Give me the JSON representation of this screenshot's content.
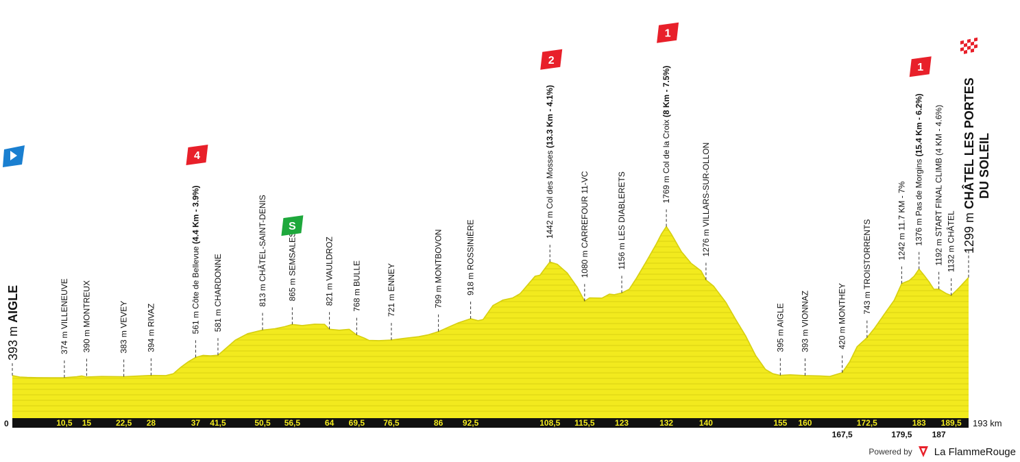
{
  "chart_data": {
    "type": "area",
    "title": "",
    "xlabel": "",
    "ylabel": "",
    "x_unit": "km",
    "xlim": [
      0,
      193
    ],
    "ylim": [
      0,
      2000
    ],
    "fill_color": "#f2ea1e",
    "axis_bar_color": "#111111",
    "tick_label_color": "#f2ea1e",
    "start_km_label": "0",
    "end_km_label": "193 km",
    "profile": [
      [
        0,
        393
      ],
      [
        1.5,
        380
      ],
      [
        3,
        376
      ],
      [
        5,
        374
      ],
      [
        8,
        373
      ],
      [
        10.5,
        374
      ],
      [
        13,
        382
      ],
      [
        14,
        390
      ],
      [
        15,
        380
      ],
      [
        18,
        385
      ],
      [
        22.5,
        383
      ],
      [
        25,
        388
      ],
      [
        28,
        394
      ],
      [
        31,
        393
      ],
      [
        32.5,
        410
      ],
      [
        34,
        470
      ],
      [
        35.5,
        520
      ],
      [
        37,
        561
      ],
      [
        38.5,
        580
      ],
      [
        40,
        575
      ],
      [
        41.5,
        581
      ],
      [
        43,
        640
      ],
      [
        45,
        720
      ],
      [
        47.5,
        780
      ],
      [
        50.5,
        813
      ],
      [
        53,
        826
      ],
      [
        55,
        845
      ],
      [
        56.5,
        865
      ],
      [
        58.5,
        855
      ],
      [
        61,
        868
      ],
      [
        63,
        866
      ],
      [
        64,
        821
      ],
      [
        66,
        812
      ],
      [
        68,
        820
      ],
      [
        69.5,
        768
      ],
      [
        71,
        740
      ],
      [
        72,
        718
      ],
      [
        74,
        716
      ],
      [
        76.5,
        721
      ],
      [
        79,
        736
      ],
      [
        82,
        752
      ],
      [
        84,
        770
      ],
      [
        86,
        799
      ],
      [
        88,
        840
      ],
      [
        90,
        880
      ],
      [
        92.5,
        918
      ],
      [
        94,
        900
      ],
      [
        95,
        910
      ],
      [
        97,
        1040
      ],
      [
        99,
        1090
      ],
      [
        101,
        1110
      ],
      [
        102.5,
        1150
      ],
      [
        104,
        1230
      ],
      [
        105.5,
        1310
      ],
      [
        106.5,
        1320
      ],
      [
        107.5,
        1382
      ],
      [
        108.5,
        1442
      ],
      [
        110,
        1420
      ],
      [
        112,
        1340
      ],
      [
        114,
        1210
      ],
      [
        115.5,
        1080
      ],
      [
        116.5,
        1110
      ],
      [
        119,
        1108
      ],
      [
        120.5,
        1145
      ],
      [
        121.5,
        1140
      ],
      [
        123,
        1156
      ],
      [
        124.5,
        1190
      ],
      [
        126,
        1295
      ],
      [
        128,
        1450
      ],
      [
        130,
        1610
      ],
      [
        131,
        1700
      ],
      [
        132,
        1769
      ],
      [
        133,
        1700
      ],
      [
        135,
        1540
      ],
      [
        137,
        1430
      ],
      [
        139,
        1360
      ],
      [
        140,
        1276
      ],
      [
        141.5,
        1220
      ],
      [
        144,
        1070
      ],
      [
        146,
        910
      ],
      [
        148,
        760
      ],
      [
        150,
        580
      ],
      [
        152,
        450
      ],
      [
        153.5,
        410
      ],
      [
        155,
        395
      ],
      [
        157,
        400
      ],
      [
        160,
        393
      ],
      [
        163,
        390
      ],
      [
        165,
        385
      ],
      [
        167.5,
        420
      ],
      [
        169,
        520
      ],
      [
        170.5,
        660
      ],
      [
        172.5,
        743
      ],
      [
        174,
        830
      ],
      [
        176,
        960
      ],
      [
        178,
        1090
      ],
      [
        179.5,
        1242
      ],
      [
        181,
        1270
      ],
      [
        182,
        1310
      ],
      [
        183,
        1376
      ],
      [
        184,
        1320
      ],
      [
        185,
        1260
      ],
      [
        186,
        1190
      ],
      [
        187,
        1192
      ],
      [
        188.5,
        1150
      ],
      [
        189.5,
        1132
      ],
      [
        191,
        1200
      ],
      [
        193,
        1299
      ]
    ],
    "km_ticks_top": [
      "10,5",
      "15",
      "22,5",
      "28",
      "37",
      "41,5",
      "50,5",
      "56,5",
      "64",
      "69,5",
      "76,5",
      "86",
      "92,5",
      "108,5",
      "115,5",
      "123",
      "132",
      "140",
      "155",
      "160",
      "172,5",
      "183",
      "189,5"
    ],
    "km_ticks_top_values": [
      10.5,
      15,
      22.5,
      28,
      37,
      41.5,
      50.5,
      56.5,
      64,
      69.5,
      76.5,
      86,
      92.5,
      108.5,
      115.5,
      123,
      132,
      140,
      155,
      160,
      172.5,
      183,
      189.5
    ],
    "km_ticks_bottom": [
      "167,5",
      "179,5",
      "187"
    ],
    "km_ticks_bottom_values": [
      167.5,
      179.5,
      187
    ],
    "waypoints": [
      {
        "km": 10.5,
        "alt": 374,
        "label": "374 m VILLENEUVE"
      },
      {
        "km": 15,
        "alt": 390,
        "label": "390 m MONTREUX"
      },
      {
        "km": 22.5,
        "alt": 383,
        "label": "383 m VEVEY"
      },
      {
        "km": 28,
        "alt": 394,
        "label": "394 m RIVAZ"
      },
      {
        "km": 37,
        "alt": 561,
        "label": "561 m Côte de Bellevue",
        "bold": "(4.4 Km - 3.9%)",
        "category": "4"
      },
      {
        "km": 41.5,
        "alt": 581,
        "label": "581 m CHARDONNE"
      },
      {
        "km": 50.5,
        "alt": 813,
        "label": "813 m CHÂTEL-SAINT-DENIS"
      },
      {
        "km": 56.5,
        "alt": 865,
        "label": "865 m SEMSALES",
        "sprint": true
      },
      {
        "km": 64,
        "alt": 821,
        "label": "821 m VAULDROZ"
      },
      {
        "km": 69.5,
        "alt": 768,
        "label": "768 m BULLE"
      },
      {
        "km": 76.5,
        "alt": 721,
        "label": "721 m ENNEY"
      },
      {
        "km": 86,
        "alt": 799,
        "label": "799 m MONTBOVON"
      },
      {
        "km": 92.5,
        "alt": 918,
        "label": "918 m ROSSINIÈRE"
      },
      {
        "km": 108.5,
        "alt": 1442,
        "label": "1442 m Col des Mosses",
        "bold": "(13.3 Km - 4.1%)",
        "category": "2"
      },
      {
        "km": 115.5,
        "alt": 1080,
        "label": "1080 m CARREFOUR 11-VC"
      },
      {
        "km": 123,
        "alt": 1156,
        "label": "1156 m LES DIABLERETS"
      },
      {
        "km": 132,
        "alt": 1769,
        "label": "1769 m Col de la Croix",
        "bold": "(8 Km - 7.5%)",
        "category": "1"
      },
      {
        "km": 140,
        "alt": 1276,
        "label": "1276 m VILLARS-SUR-OLLON"
      },
      {
        "km": 155,
        "alt": 395,
        "label": "395 m AIGLE"
      },
      {
        "km": 160,
        "alt": 393,
        "label": "393 m VIONNAZ"
      },
      {
        "km": 167.5,
        "alt": 420,
        "label": "420 m MONTHEY"
      },
      {
        "km": 172.5,
        "alt": 743,
        "label": "743 m TROISTORRENTS"
      },
      {
        "km": 179.5,
        "alt": 1242,
        "label": "1242 m 11.7 KM - 7%"
      },
      {
        "km": 183,
        "alt": 1376,
        "label": "1376 m Pas de Morgins",
        "bold": "(15.4 Km - 6.2%)",
        "category": "1"
      },
      {
        "km": 187,
        "alt": 1192,
        "label": "1192 m START FINAL CLIMB (4 KM - 4.6%)"
      },
      {
        "km": 189.5,
        "alt": 1132,
        "label": "1132 m CHÂTEL"
      }
    ],
    "start": {
      "altitude_label": "393 m",
      "name": "AIGLE"
    },
    "finish": {
      "altitude_label": "1299 m",
      "name_line1": "CHÂTEL LES PORTES",
      "name_line2": "DU SOLEIL"
    },
    "category_color": "#e8202a",
    "sprint_color": "#1ea83c",
    "sprint_label": "S",
    "start_flag_color": "#1a7fd0"
  },
  "footer": {
    "powered_by": "Powered by",
    "brand_la": "La ",
    "brand_name": "FlammeRouge",
    "brand_color": "#e8202a"
  }
}
